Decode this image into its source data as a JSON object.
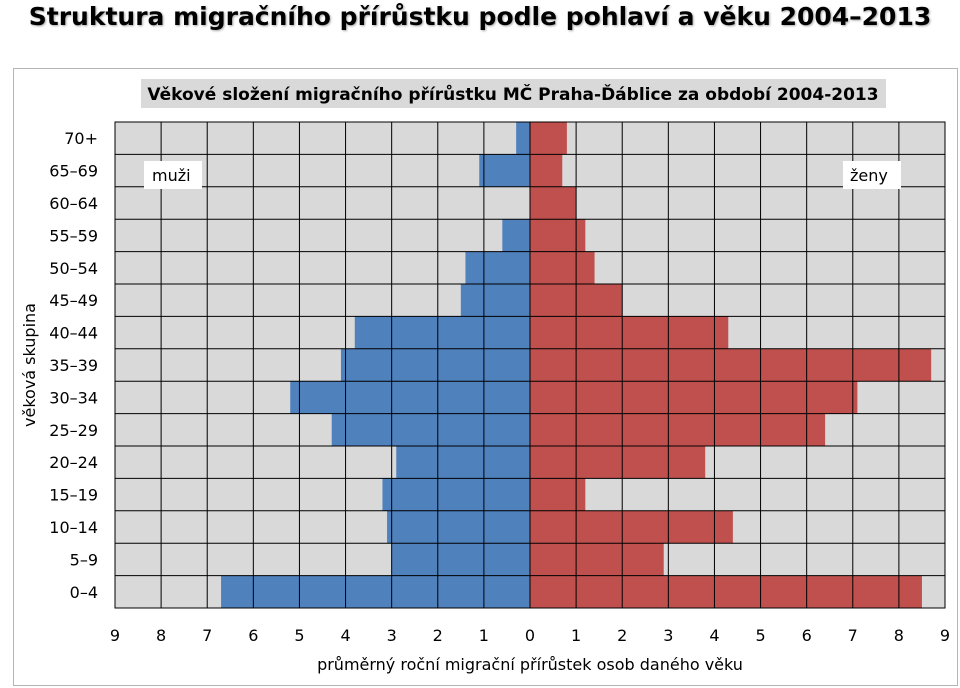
{
  "page_title": "Struktura migračního přírůstku podle pohlaví a věku 2004–2013",
  "colors": {
    "men": "#4f81bd",
    "women": "#c0504d",
    "plot_bg": "#d9d9d9",
    "grid": "#000000"
  },
  "chart_data": {
    "type": "bar",
    "orientation": "horizontal",
    "title": "Věkové složení migračního přírůstku MČ Praha-Ďáblice za období 2004-2013",
    "xlabel": "průměrný roční migrační přírůstek osob daného věku",
    "ylabel": "věková skupina",
    "categories": [
      "0–4",
      "5–9",
      "10–14",
      "15–19",
      "20–24",
      "25–29",
      "30–34",
      "35–39",
      "40–44",
      "45–49",
      "50–54",
      "55–59",
      "60–64",
      "65–69",
      "70+"
    ],
    "x_ticks": [
      "9",
      "8",
      "7",
      "6",
      "5",
      "4",
      "3",
      "2",
      "1",
      "0",
      "1",
      "2",
      "3",
      "4",
      "5",
      "6",
      "7",
      "8",
      "9"
    ],
    "xlim": [
      -9,
      9
    ],
    "grid": true,
    "series": [
      {
        "name": "muži",
        "values": [
          6.7,
          3.0,
          3.1,
          3.2,
          2.9,
          4.3,
          5.2,
          4.1,
          3.8,
          1.5,
          1.4,
          0.6,
          0.0,
          1.1,
          0.3
        ]
      },
      {
        "name": "ženy",
        "values": [
          8.5,
          2.9,
          4.4,
          1.2,
          3.8,
          6.4,
          7.1,
          8.7,
          4.3,
          2.0,
          1.4,
          1.2,
          1.0,
          0.7,
          0.8
        ]
      }
    ]
  }
}
